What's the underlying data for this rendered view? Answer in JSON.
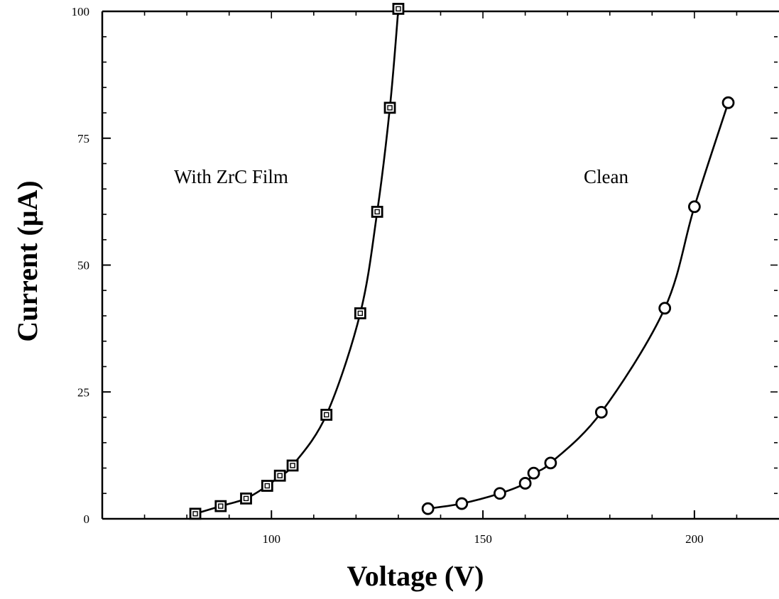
{
  "chart_data": {
    "type": "line",
    "xlabel": "Voltage  (V)",
    "ylabel": "Current (μA)",
    "xlim": [
      60,
      220
    ],
    "ylim": [
      0,
      100
    ],
    "x_ticks": [
      100,
      150,
      200
    ],
    "y_ticks": [
      0,
      25,
      50,
      75,
      100
    ],
    "grid": false,
    "annotations": [
      {
        "text": "With ZrC Film",
        "x": 80,
        "y": 68
      },
      {
        "text": "Clean",
        "x": 180,
        "y": 68
      }
    ],
    "series": [
      {
        "marker": "square",
        "x": [
          82,
          88,
          94,
          99,
          102,
          105,
          113,
          121,
          125,
          128,
          130
        ],
        "y": [
          1,
          2.5,
          4,
          6.5,
          8.5,
          10.5,
          20.5,
          40.5,
          60.5,
          81,
          100.5
        ]
      },
      {
        "marker": "circle",
        "x": [
          137,
          145,
          154,
          160,
          162,
          166,
          178,
          193,
          200,
          208
        ],
        "y": [
          2,
          3,
          5,
          7,
          9,
          11,
          21,
          41.5,
          61.5,
          82
        ]
      }
    ]
  }
}
